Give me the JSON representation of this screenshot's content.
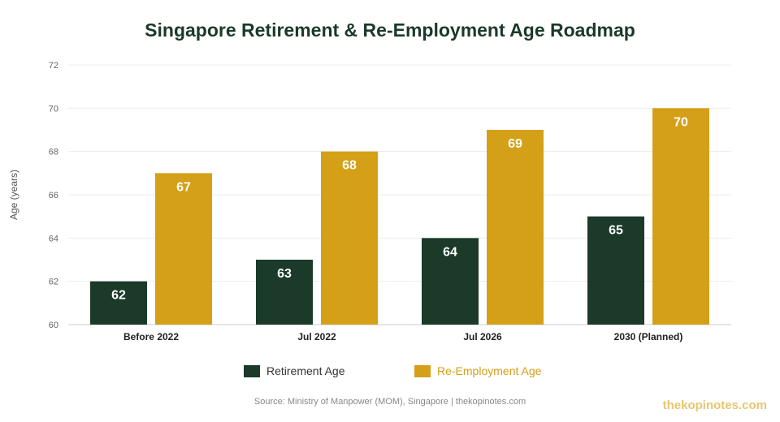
{
  "chart_data": {
    "type": "bar",
    "title": "Singapore Retirement & Re-Employment Age Roadmap",
    "xlabel": "",
    "ylabel": "Age (years)",
    "ylim": [
      60,
      72
    ],
    "yticks": [
      60,
      62,
      64,
      66,
      68,
      70,
      72
    ],
    "categories": [
      "Before 2022",
      "Jul 2022",
      "Jul 2026",
      "2030 (Planned)"
    ],
    "series": [
      {
        "name": "Retirement Age",
        "color": "#1b3a2a",
        "values": [
          62,
          63,
          64,
          65
        ]
      },
      {
        "name": "Re-Employment Age",
        "color": "#d4a017",
        "values": [
          67,
          68,
          69,
          70
        ]
      }
    ],
    "grid": true,
    "legend": "bottom-center"
  },
  "source": "Source: Ministry of Manpower (MOM), Singapore | thekopinotes.com",
  "watermark": "thekopinotes.com"
}
